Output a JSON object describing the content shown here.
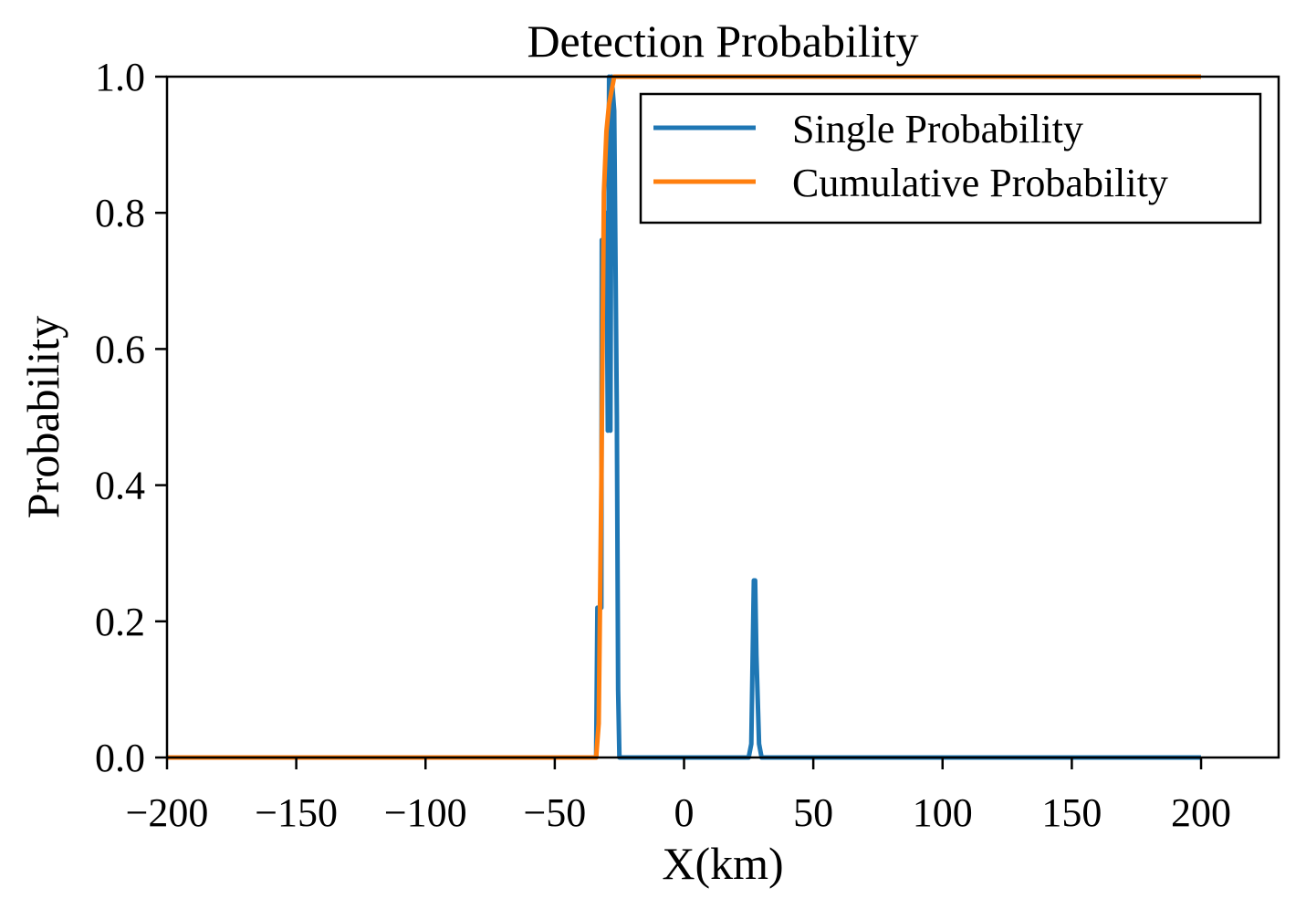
{
  "chart_data": {
    "type": "line",
    "title": "Detection Probability",
    "xlabel": "X(km)",
    "ylabel": "Probability",
    "xlim": [
      -200,
      230
    ],
    "ylim": [
      0,
      1.0
    ],
    "xticks": [
      -200,
      -150,
      -100,
      -50,
      0,
      50,
      100,
      150,
      200
    ],
    "xtick_labels": [
      "−200",
      "−150",
      "−100",
      "−50",
      "0",
      "50",
      "100",
      "150",
      "200"
    ],
    "yticks": [
      0,
      0.2,
      0.4,
      0.6,
      0.8,
      1.0
    ],
    "ytick_labels": [
      "0.0",
      "0.2",
      "0.4",
      "0.6",
      "0.8",
      "1.0"
    ],
    "grid": false,
    "legend_position": "top-right",
    "series": [
      {
        "name": "Single Probability",
        "color": "#1f77b4",
        "x": [
          -200,
          -34,
          -33.5,
          -32,
          -31.8,
          -31,
          -30,
          -29.5,
          -29,
          -28.5,
          -28,
          -27,
          -26,
          -25.5,
          -25,
          0,
          25,
          26,
          27,
          27.5,
          28,
          29,
          30,
          200
        ],
        "y": [
          0,
          0,
          0.22,
          0.22,
          0.76,
          0.76,
          0.8,
          0.48,
          1.0,
          0.48,
          1.0,
          0.95,
          0.5,
          0.1,
          0,
          0,
          0,
          0.02,
          0.26,
          0.26,
          0.15,
          0.02,
          0,
          0
        ]
      },
      {
        "name": "Cumulative Probability",
        "color": "#ff7f0e",
        "x": [
          -200,
          -34,
          -33,
          -32,
          -31,
          -30,
          -29,
          -28,
          -27,
          -26.5,
          200
        ],
        "y": [
          0,
          0,
          0.05,
          0.4,
          0.83,
          0.92,
          0.96,
          0.98,
          1.0,
          1.0,
          1.0
        ]
      }
    ]
  }
}
